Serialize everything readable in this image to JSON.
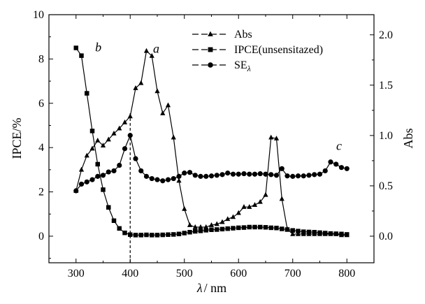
{
  "chart_data": {
    "type": "line",
    "xlabel_symbol": "λ",
    "xlabel_unit": "/ nm",
    "ylabel": "IPCE/%",
    "y2label": "Abs",
    "xlim": [
      250,
      850
    ],
    "ylim": [
      -1.2,
      10
    ],
    "y2lim": [
      -0.264,
      2.2
    ],
    "x_ticks": [
      "300",
      "400",
      "500",
      "600",
      "700",
      "800"
    ],
    "x_tick_values": [
      300,
      400,
      500,
      600,
      700,
      800
    ],
    "y_ticks": [
      "0",
      "2",
      "4",
      "6",
      "8",
      "10"
    ],
    "y_tick_values": [
      0,
      2,
      4,
      6,
      8,
      10
    ],
    "y2_ticks": [
      "0.0",
      "0.5",
      "1.0",
      "1.5",
      "2.0"
    ],
    "y2_tick_values": [
      0,
      0.5,
      1.0,
      1.5,
      2.0
    ],
    "grid": false,
    "legend_position": "top-right",
    "legend": [
      {
        "label": "Abs",
        "marker": "triangle"
      },
      {
        "label": "IPCE(unsensitazed)",
        "marker": "square"
      },
      {
        "label": "SE",
        "subscript": "λ",
        "marker": "circle"
      }
    ],
    "series": [
      {
        "name": "Abs",
        "axis": "right",
        "marker": "triangle",
        "letter": "a",
        "letter_at": [
          432,
          1.82
        ],
        "x": [
          300,
          310,
          320,
          330,
          340,
          350,
          360,
          370,
          380,
          390,
          400,
          410,
          420,
          430,
          440,
          450,
          460,
          470,
          480,
          490,
          500,
          510,
          520,
          530,
          540,
          550,
          560,
          570,
          580,
          590,
          600,
          610,
          620,
          630,
          640,
          650,
          660,
          670,
          680,
          690,
          700,
          710,
          720,
          730,
          740,
          750,
          760,
          770,
          780,
          790,
          800
        ],
        "y": [
          0.45,
          0.66,
          0.8,
          0.87,
          0.95,
          0.9,
          0.96,
          1.02,
          1.07,
          1.13,
          1.19,
          1.47,
          1.52,
          1.84,
          1.79,
          1.44,
          1.22,
          1.3,
          0.98,
          0.55,
          0.27,
          0.11,
          0.09,
          0.09,
          0.09,
          0.11,
          0.12,
          0.14,
          0.17,
          0.19,
          0.23,
          0.29,
          0.29,
          0.31,
          0.34,
          0.41,
          0.98,
          0.97,
          0.37,
          0.07,
          0.02,
          0.02,
          0.02,
          0.02,
          0.02,
          0.02,
          0.02,
          0.02,
          0.02,
          0.01,
          0.01
        ]
      },
      {
        "name": "IPCE(unsensitazed)",
        "axis": "left",
        "marker": "square",
        "letter": "b",
        "letter_at": [
          325,
          8.35
        ],
        "x": [
          300,
          310,
          320,
          330,
          340,
          350,
          360,
          370,
          380,
          390,
          400,
          410,
          420,
          430,
          440,
          450,
          460,
          470,
          480,
          490,
          500,
          510,
          520,
          530,
          540,
          550,
          560,
          570,
          580,
          590,
          600,
          610,
          620,
          630,
          640,
          650,
          660,
          670,
          680,
          690,
          700,
          710,
          720,
          730,
          740,
          750,
          760,
          770,
          780,
          790,
          800
        ],
        "y": [
          8.5,
          8.15,
          6.45,
          4.75,
          3.25,
          2.1,
          1.3,
          0.7,
          0.35,
          0.15,
          0.07,
          0.05,
          0.05,
          0.06,
          0.05,
          0.05,
          0.06,
          0.07,
          0.08,
          0.1,
          0.14,
          0.18,
          0.22,
          0.24,
          0.27,
          0.29,
          0.3,
          0.32,
          0.34,
          0.36,
          0.38,
          0.39,
          0.41,
          0.41,
          0.41,
          0.4,
          0.38,
          0.37,
          0.33,
          0.3,
          0.26,
          0.23,
          0.2,
          0.19,
          0.18,
          0.16,
          0.14,
          0.12,
          0.11,
          0.1,
          0.08
        ]
      },
      {
        "name": "SEλ",
        "axis": "left",
        "marker": "circle",
        "letter": "c",
        "letter_at": [
          770,
          3.9
        ],
        "x": [
          300,
          310,
          320,
          330,
          340,
          350,
          360,
          370,
          380,
          390,
          400,
          410,
          420,
          430,
          440,
          450,
          460,
          470,
          480,
          490,
          500,
          510,
          520,
          530,
          540,
          550,
          560,
          570,
          580,
          590,
          600,
          610,
          620,
          630,
          640,
          650,
          660,
          670,
          680,
          690,
          700,
          710,
          720,
          730,
          740,
          750,
          760,
          770,
          780,
          790,
          800
        ],
        "y": [
          2.05,
          2.35,
          2.45,
          2.55,
          2.7,
          2.75,
          2.9,
          2.95,
          3.2,
          3.95,
          4.55,
          3.5,
          2.95,
          2.7,
          2.6,
          2.55,
          2.5,
          2.55,
          2.6,
          2.7,
          2.85,
          2.88,
          2.75,
          2.7,
          2.7,
          2.72,
          2.75,
          2.78,
          2.85,
          2.8,
          2.8,
          2.82,
          2.8,
          2.8,
          2.82,
          2.8,
          2.78,
          2.75,
          3.05,
          2.72,
          2.7,
          2.72,
          2.72,
          2.75,
          2.78,
          2.8,
          2.95,
          3.35,
          3.25,
          3.1,
          3.05
        ]
      }
    ],
    "annotations": [
      {
        "type": "dashed-vertical",
        "x": 400,
        "y_from": -1.2,
        "y_to": 5.6
      }
    ]
  }
}
